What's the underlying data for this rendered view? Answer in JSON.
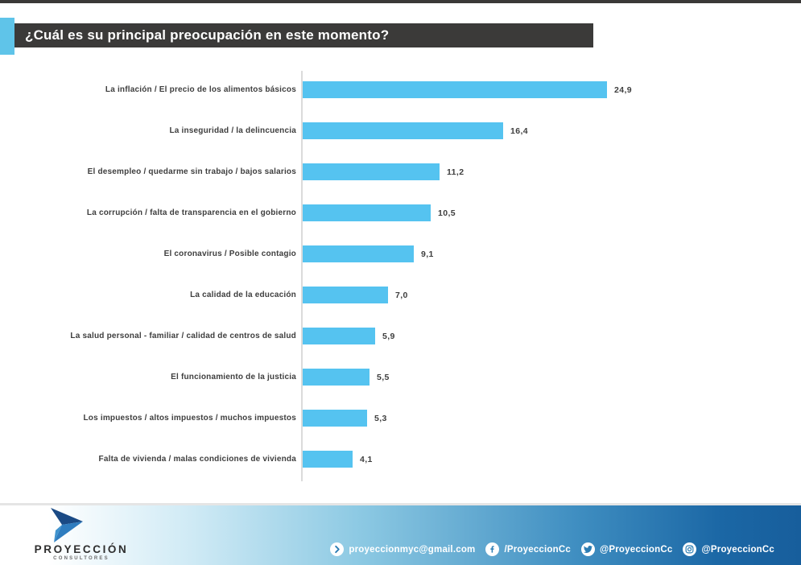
{
  "page": {
    "title": "¿Cuál es su principal preocupación en este momento?"
  },
  "chart_data": {
    "type": "bar",
    "orientation": "horizontal",
    "title": "¿Cuál es su principal preocupación en este momento?",
    "categories": [
      "La inflación / El precio de los alimentos básicos",
      "La inseguridad / la delincuencia",
      "El desempleo / quedarme sin trabajo / bajos salarios",
      "La corrupción / falta de transparencia en el gobierno",
      "El coronavirus / Posible contagio",
      "La calidad de la educación",
      "La salud personal - familiar / calidad de centros de salud",
      "El funcionamiento de la justicia",
      "Los impuestos / altos impuestos / muchos impuestos",
      "Falta de vivienda / malas condiciones de vivienda"
    ],
    "values": [
      24.9,
      16.4,
      11.2,
      10.5,
      9.1,
      7.0,
      5.9,
      5.5,
      5.3,
      4.1
    ],
    "value_labels": [
      "24,9",
      "16,4",
      "11,2",
      "10,5",
      "9,1",
      "7,0",
      "5,9",
      "5,5",
      "5,3",
      "4,1"
    ],
    "xlim": [
      0,
      25
    ],
    "grid": false,
    "legend": "none",
    "bar_color": "#55C3F0"
  },
  "footer": {
    "brand": {
      "name": "PROYECCIÓN",
      "subtitle": "CONSULTORES"
    },
    "social": [
      {
        "icon": "send-icon",
        "label": "proyeccionmyc@gmail.com"
      },
      {
        "icon": "facebook-icon",
        "label": "/ProyeccionCc"
      },
      {
        "icon": "twitter-icon",
        "label": "@ProyeccionCc"
      },
      {
        "icon": "instagram-icon",
        "label": "@ProyeccionCc"
      }
    ]
  },
  "colors": {
    "bar": "#55C3F0",
    "title_bar_bg": "#3B3A39",
    "accent_square": "#5FC4E9",
    "axis_line": "#DBDBDB",
    "footer_gradient_end": "#175E9C",
    "icon_glyph_blue": "#2A7CB3",
    "logo_dark_blue": "#1A4A85",
    "logo_mid_blue": "#2E7CBF"
  }
}
